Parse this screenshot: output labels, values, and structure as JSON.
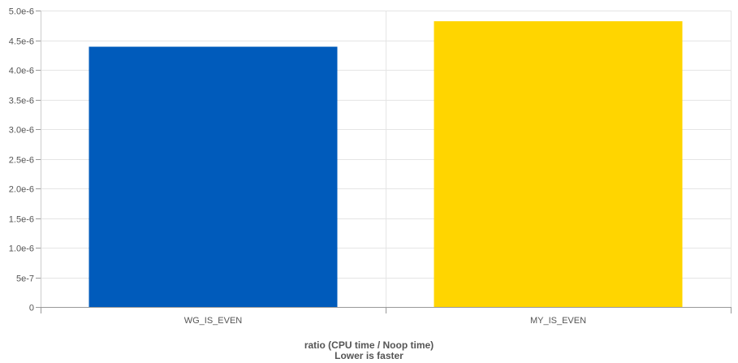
{
  "chart_data": {
    "type": "bar",
    "categories": [
      "WG_IS_EVEN",
      "MY_IS_EVEN"
    ],
    "values": [
      4.39e-06,
      4.82e-06
    ],
    "bar_colors": [
      "#005bbb",
      "#ffd500"
    ],
    "ylim": [
      0,
      5e-06
    ],
    "y_ticks": [
      0,
      5e-07,
      1e-06,
      1.5e-06,
      2e-06,
      2.5e-06,
      3e-06,
      3.5e-06,
      4e-06,
      4.5e-06,
      5e-06
    ],
    "y_tick_labels": [
      "0",
      "5e-7",
      "1.0e-6",
      "1.5e-6",
      "2.0e-6",
      "2.5e-6",
      "3.0e-6",
      "3.5e-6",
      "4.0e-6",
      "4.5e-6",
      "5.0e-6"
    ],
    "xlabel_lines": [
      "ratio (CPU time / Noop time)",
      "Lower is faster"
    ],
    "grid": true,
    "legend": "none"
  }
}
